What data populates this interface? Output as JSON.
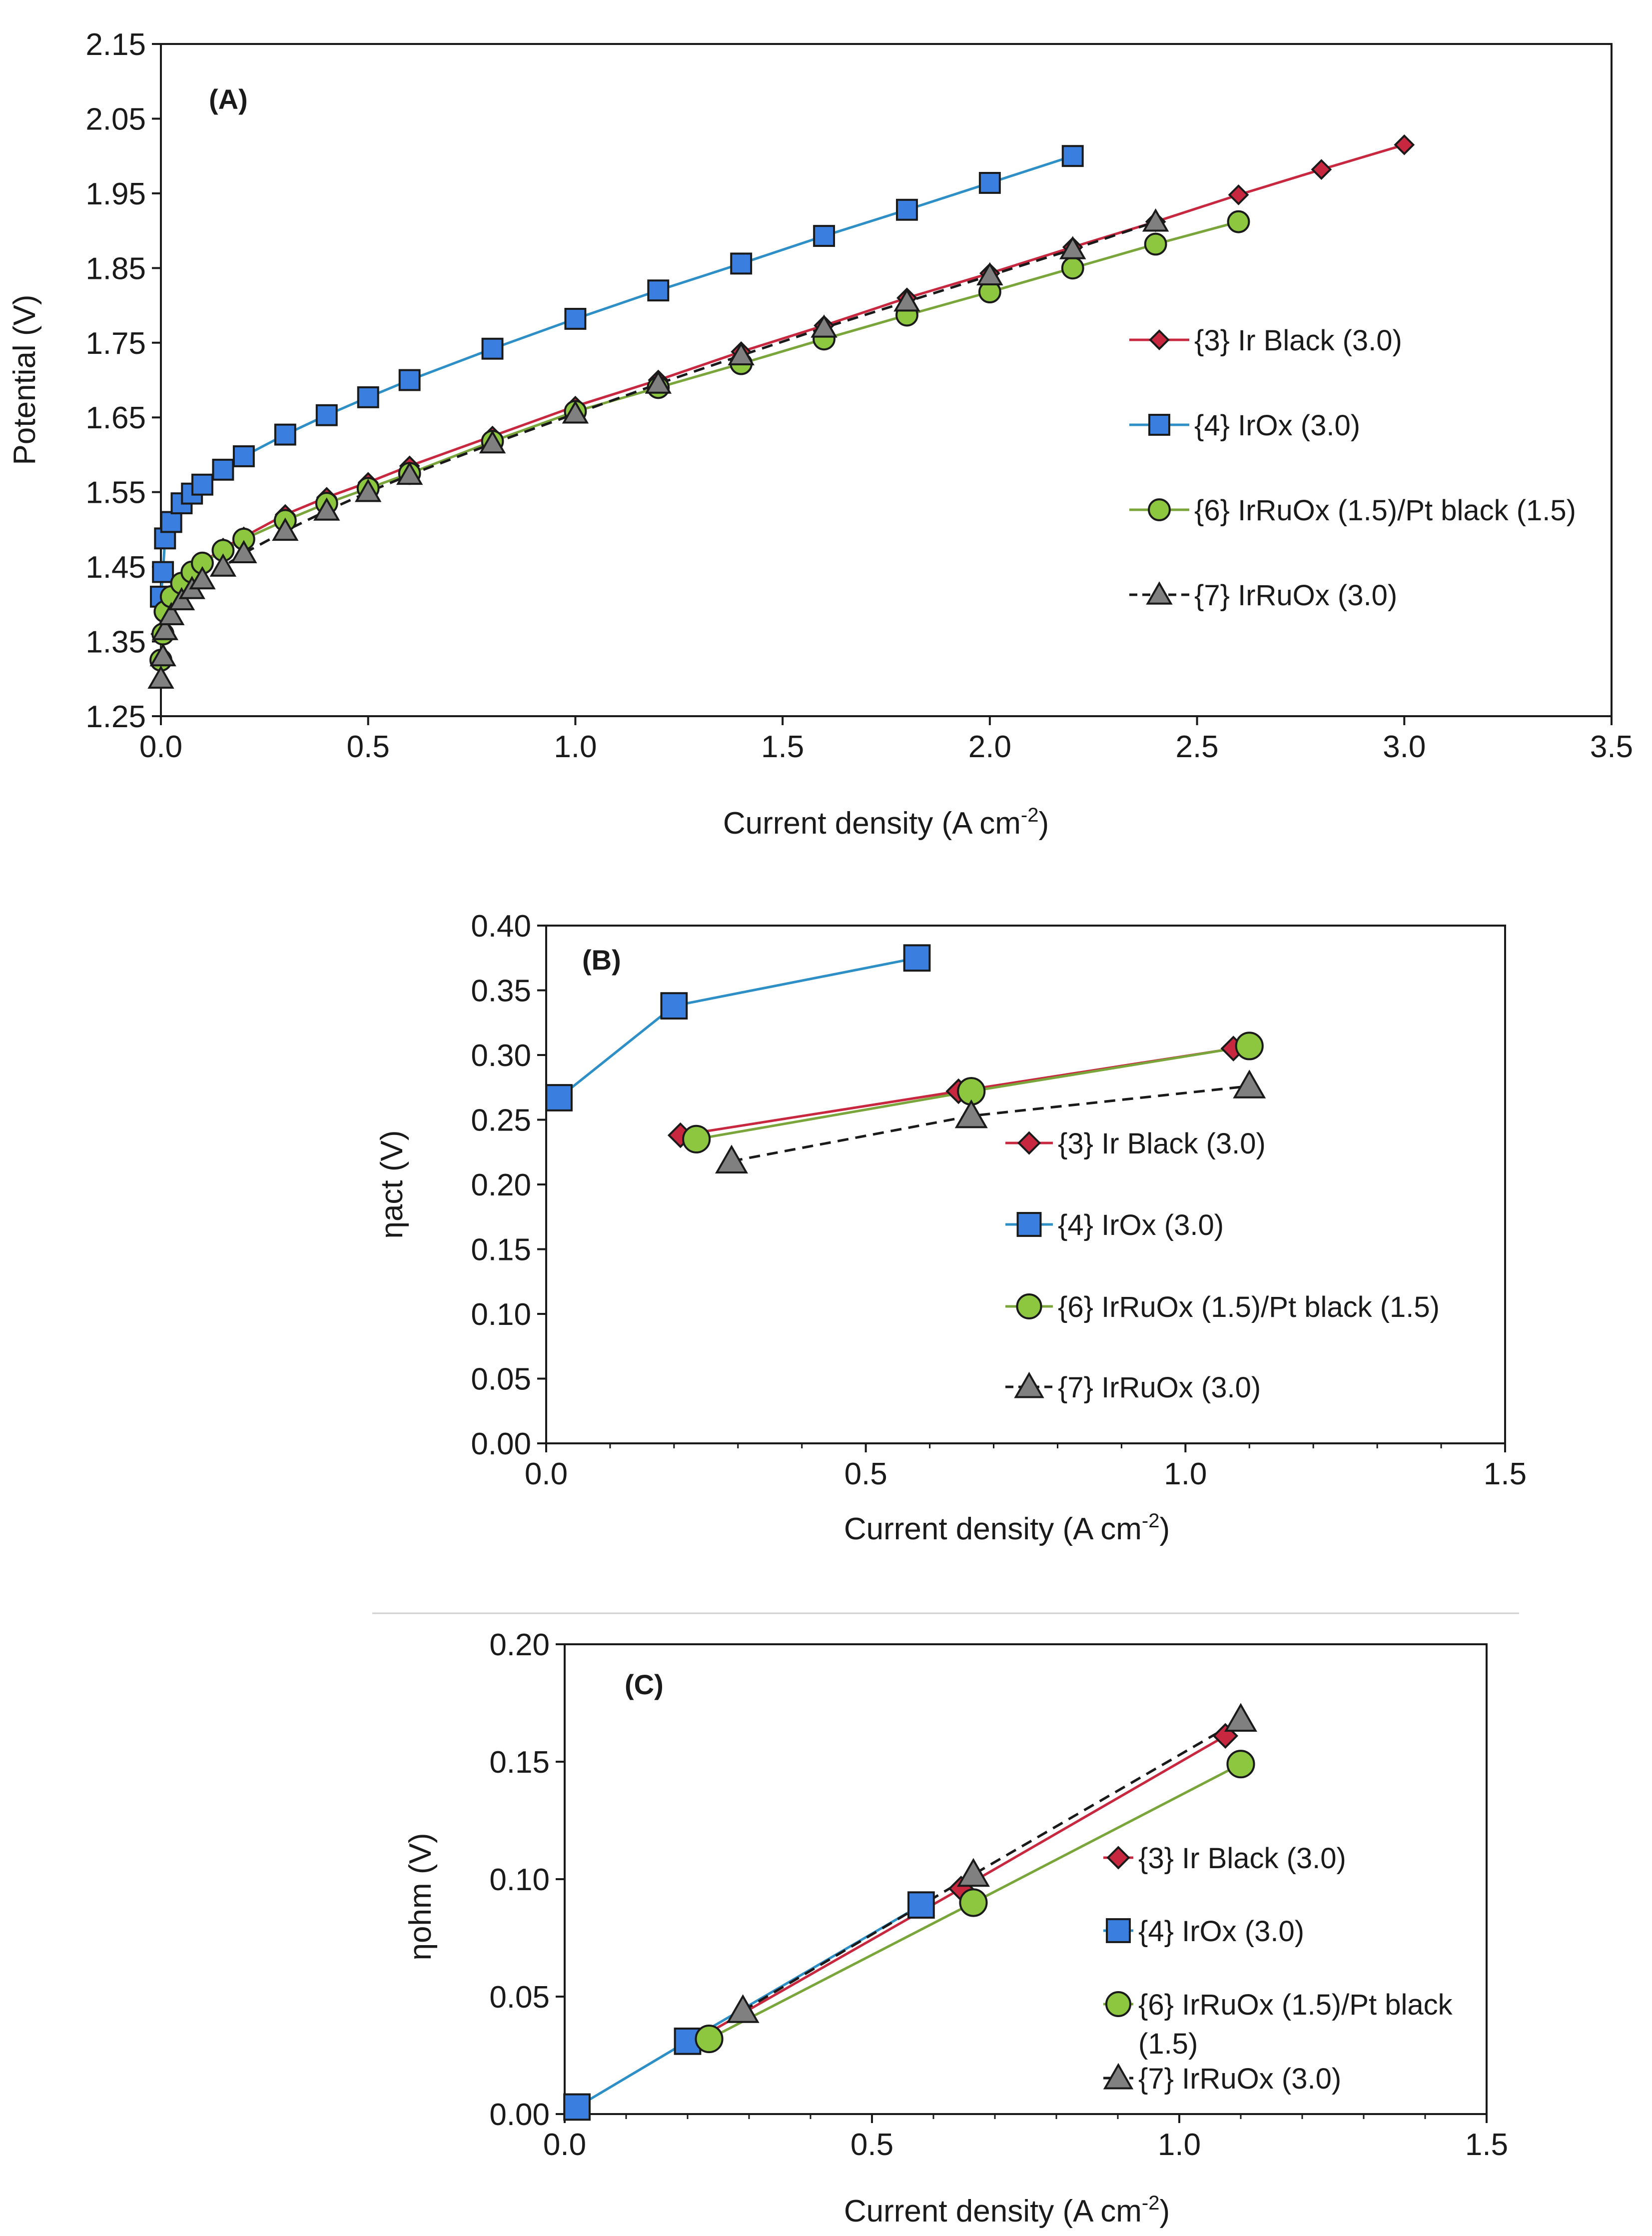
{
  "colors": {
    "ir_black": "#C8283F",
    "irox": "#3A7FE0",
    "irox_line": "#2E8FC7",
    "irruox_pt": "#8DC63F",
    "irruox_pt_line": "#7AA53A",
    "irruox": "#808080",
    "irruox_line": "#1a1a1a"
  },
  "chart_data": [
    {
      "id": "A",
      "type": "line",
      "panel_label": "(A)",
      "xlabel": "Current density (A cm",
      "xlabel_sup": "-2",
      "xlabel_end": ")",
      "ylabel": "Potential (V)",
      "xlim": [
        0,
        3.5
      ],
      "ylim": [
        1.25,
        2.15
      ],
      "x_ticks": [
        0,
        0.5,
        1.0,
        1.5,
        2.0,
        2.5,
        3.0,
        3.5
      ],
      "x_tick_labels": [
        "0.0",
        "0.5",
        "1.0",
        "1.5",
        "2.0",
        "2.5",
        "3.0",
        "3.5"
      ],
      "y_ticks": [
        1.25,
        1.35,
        1.45,
        1.55,
        1.65,
        1.75,
        1.85,
        1.95,
        2.05,
        2.15
      ],
      "y_tick_labels": [
        "1.25",
        "1.35",
        "1.45",
        "1.55",
        "1.65",
        "1.75",
        "1.85",
        "1.95",
        "2.05",
        "2.15"
      ],
      "legend": [
        "{3} Ir Black (3.0)",
        "{4} IrOx (3.0)",
        "{6} IrRuOx (1.5)/Pt black (1.5)",
        "{7} IrRuOx (3.0)"
      ],
      "series": [
        {
          "name": "{3} Ir Black (3.0)",
          "x": [
            0,
            0.01,
            0.025,
            0.05,
            0.075,
            0.1,
            0.15,
            0.2,
            0.3,
            0.4,
            0.5,
            0.6,
            0.8,
            1.0,
            1.2,
            1.4,
            1.6,
            1.8,
            2.0,
            2.2,
            2.4,
            2.6,
            2.8,
            3.0
          ],
          "y": [
            1.36,
            1.39,
            1.41,
            1.43,
            1.445,
            1.455,
            1.475,
            1.49,
            1.52,
            1.543,
            1.563,
            1.585,
            1.625,
            1.665,
            1.7,
            1.738,
            1.773,
            1.81,
            1.843,
            1.878,
            1.912,
            1.948,
            1.982,
            2.015
          ]
        },
        {
          "name": "{4} IrOx (3.0)",
          "x": [
            0,
            0.005,
            0.01,
            0.025,
            0.05,
            0.075,
            0.1,
            0.15,
            0.2,
            0.3,
            0.4,
            0.5,
            0.6,
            0.8,
            1.0,
            1.2,
            1.4,
            1.6,
            1.8,
            2.0,
            2.2
          ],
          "y": [
            1.41,
            1.443,
            1.488,
            1.51,
            1.535,
            1.548,
            1.56,
            1.58,
            1.598,
            1.627,
            1.653,
            1.677,
            1.7,
            1.742,
            1.782,
            1.82,
            1.856,
            1.893,
            1.928,
            1.964,
            2.0
          ]
        },
        {
          "name": "{6} IrRuOx (1.5)/Pt black (1.5)",
          "x": [
            0,
            0.005,
            0.01,
            0.025,
            0.05,
            0.075,
            0.1,
            0.15,
            0.2,
            0.3,
            0.4,
            0.5,
            0.6,
            0.8,
            1.0,
            1.2,
            1.4,
            1.6,
            1.8,
            2.0,
            2.2,
            2.4,
            2.6
          ],
          "y": [
            1.325,
            1.36,
            1.39,
            1.41,
            1.428,
            1.443,
            1.455,
            1.472,
            1.487,
            1.512,
            1.535,
            1.555,
            1.575,
            1.618,
            1.658,
            1.69,
            1.722,
            1.755,
            1.787,
            1.818,
            1.85,
            1.882,
            1.912
          ]
        },
        {
          "name": "{7} IrRuOx (3.0)",
          "x": [
            0,
            0.005,
            0.01,
            0.025,
            0.05,
            0.075,
            0.1,
            0.15,
            0.2,
            0.3,
            0.4,
            0.5,
            0.6,
            0.8,
            1.0,
            1.2,
            1.4,
            1.6,
            1.8,
            2.0,
            2.2,
            2.4
          ],
          "y": [
            1.3,
            1.33,
            1.365,
            1.385,
            1.405,
            1.42,
            1.433,
            1.45,
            1.468,
            1.498,
            1.525,
            1.55,
            1.573,
            1.615,
            1.655,
            1.695,
            1.733,
            1.77,
            1.805,
            1.84,
            1.875,
            1.912
          ]
        }
      ]
    },
    {
      "id": "B",
      "type": "line",
      "panel_label": "(B)",
      "xlabel": "Current density (A cm",
      "xlabel_sup": "-2",
      "xlabel_end": ")",
      "ylabel": "ηact (V)",
      "xlim": [
        0,
        1.5
      ],
      "ylim": [
        0,
        0.4
      ],
      "x_ticks": [
        0,
        0.5,
        1.0,
        1.5
      ],
      "x_tick_labels": [
        "0.0",
        "0.5",
        "1.0",
        "1.5"
      ],
      "y_ticks": [
        0,
        0.05,
        0.1,
        0.15,
        0.2,
        0.25,
        0.3,
        0.35,
        0.4
      ],
      "y_tick_labels": [
        "0.00",
        "0.05",
        "0.10",
        "0.15",
        "0.20",
        "0.25",
        "0.30",
        "0.35",
        "0.40"
      ],
      "legend": [
        "{3} Ir Black (3.0)",
        "{4} IrOx (3.0)",
        "{6} IrRuOx (1.5)/Pt black (1.5)",
        "{7} IrRuOx (3.0)"
      ],
      "series": [
        {
          "name": "{3} Ir Black (3.0)",
          "x": [
            0.21,
            0.645,
            1.075
          ],
          "y": [
            0.238,
            0.272,
            0.305
          ]
        },
        {
          "name": "{4} IrOx (3.0)",
          "x": [
            0.02,
            0.2,
            0.58
          ],
          "y": [
            0.267,
            0.338,
            0.375
          ]
        },
        {
          "name": "{6} IrRuOx (1.5)/Pt black (1.5)",
          "x": [
            0.235,
            0.665,
            1.1
          ],
          "y": [
            0.235,
            0.272,
            0.307
          ]
        },
        {
          "name": "{7} IrRuOx (3.0)",
          "x": [
            0.29,
            0.665,
            1.1
          ],
          "y": [
            0.218,
            0.253,
            0.276
          ]
        }
      ]
    },
    {
      "id": "C",
      "type": "line",
      "panel_label": "(C)",
      "xlabel": "Current density (A cm",
      "xlabel_sup": "-2",
      "xlabel_end": ")",
      "ylabel": "ηohm (V)",
      "xlim": [
        0,
        1.5
      ],
      "ylim": [
        0,
        0.2
      ],
      "x_ticks": [
        0,
        0.5,
        1.0,
        1.5
      ],
      "x_tick_labels": [
        "0.0",
        "0.5",
        "1.0",
        "1.5"
      ],
      "y_ticks": [
        0,
        0.05,
        0.1,
        0.15,
        0.2
      ],
      "y_tick_labels": [
        "0.00",
        "0.05",
        "0.10",
        "0.15",
        "0.20"
      ],
      "legend": [
        "{3} Ir Black (3.0)",
        "{4} IrOx (3.0)",
        "{6} IrRuOx (1.5)/Pt black",
        "(1.5)",
        "{7} IrRuOx (3.0)"
      ],
      "series": [
        {
          "name": "{3} Ir Black (3.0)",
          "x": [
            0.21,
            0.645,
            1.075
          ],
          "y": [
            0.031,
            0.096,
            0.161
          ]
        },
        {
          "name": "{4} IrOx (3.0)",
          "x": [
            0.02,
            0.2,
            0.58
          ],
          "y": [
            0.003,
            0.031,
            0.089
          ]
        },
        {
          "name": "{6} IrRuOx (1.5)/Pt black (1.5)",
          "x": [
            0.235,
            0.665,
            1.1
          ],
          "y": [
            0.032,
            0.09,
            0.149
          ]
        },
        {
          "name": "{7} IrRuOx (3.0)",
          "x": [
            0.29,
            0.665,
            1.1
          ],
          "y": [
            0.044,
            0.102,
            0.168
          ]
        }
      ]
    }
  ]
}
